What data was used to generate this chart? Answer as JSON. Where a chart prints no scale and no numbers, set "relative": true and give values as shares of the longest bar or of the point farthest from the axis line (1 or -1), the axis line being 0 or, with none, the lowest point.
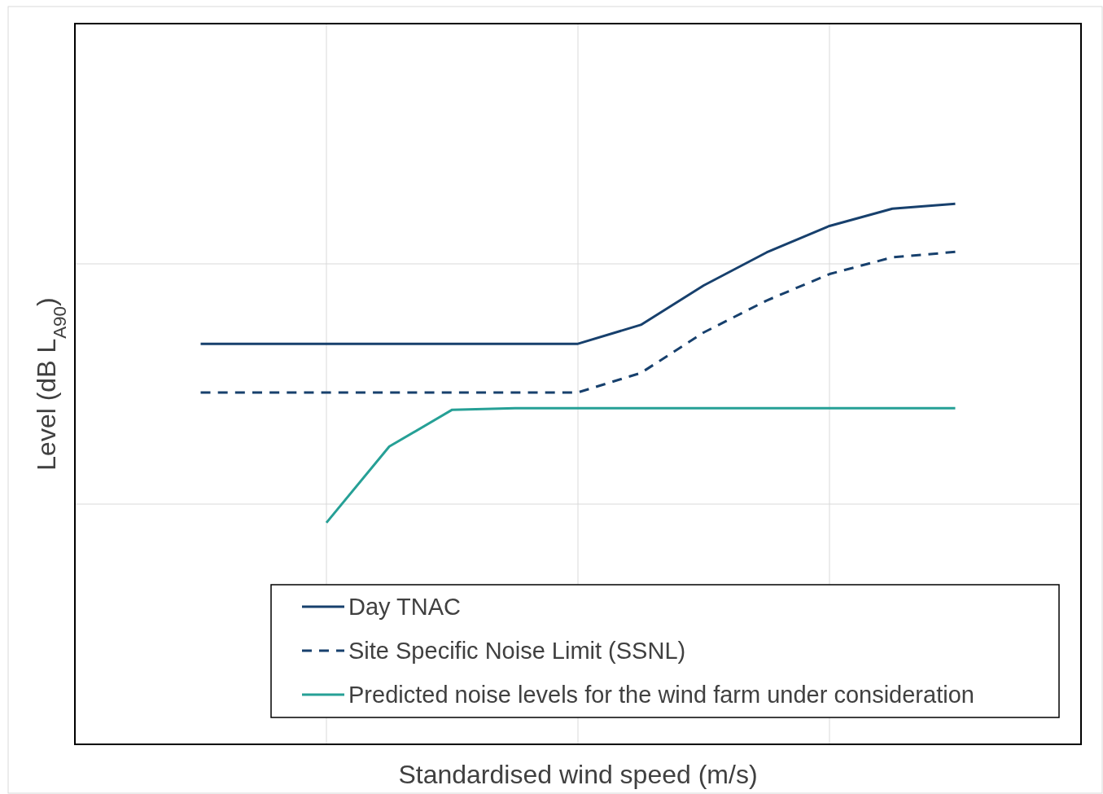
{
  "chart_data": {
    "type": "line",
    "relative": true,
    "xlabel": "Standardised wind speed (m/s)",
    "ylabel": "Level (dB L$_{A90}$)",
    "grid": true,
    "legend": "bottom right",
    "categories": [
      null,
      null,
      null,
      null,
      null,
      null,
      null,
      null,
      null,
      null,
      null,
      null,
      null,
      null,
      null,
      null,
      null
    ],
    "series": [
      {
        "name": "Day TNAC",
        "color": "#17406d",
        "line_style": "solid",
        "values": [
          null,
          null,
          0.741,
          0.741,
          0.741,
          0.741,
          0.741,
          0.741,
          0.741,
          0.776,
          0.849,
          0.91,
          0.959,
          0.991,
          1,
          null,
          null
        ]
      },
      {
        "name": "Site Specific Noise Limit (SSNL)",
        "color": "#17406d",
        "line_style": "dashed",
        "values": [
          null,
          null,
          0.651,
          0.651,
          0.651,
          0.651,
          0.651,
          0.651,
          0.651,
          0.687,
          0.762,
          0.821,
          0.87,
          0.901,
          0.911,
          null,
          null
        ]
      },
      {
        "name": "Predicted noise levels for the wind farm under consideration",
        "color": "#26a096",
        "line_style": "solid",
        "values": [
          null,
          null,
          null,
          null,
          0.41,
          0.551,
          0.619,
          0.622,
          0.622,
          0.622,
          0.622,
          0.622,
          0.622,
          0.622,
          0.622,
          null,
          null
        ]
      }
    ]
  }
}
